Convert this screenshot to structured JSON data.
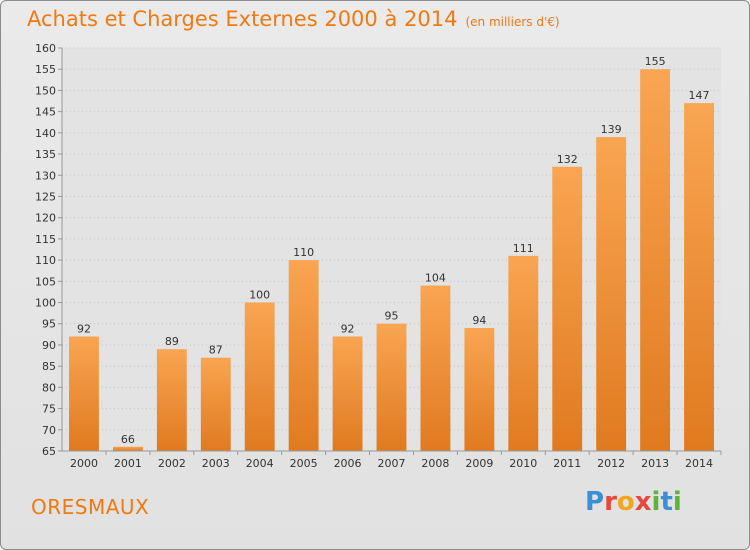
{
  "header": {
    "title": "Achats et Charges Externes 2000 à 2014",
    "unit": "(en milliers d'€)"
  },
  "footer": {
    "commune": "ORESMAUX",
    "logo_text": "Proxiti"
  },
  "colors": {
    "bar_top": "#f9a552",
    "bar_bottom": "#e07a1f",
    "accent": "#f07a10"
  },
  "chart_data": {
    "type": "bar",
    "title": "Achats et Charges Externes 2000 à 2014",
    "subtitle": "(en milliers d'€)",
    "xlabel": "",
    "ylabel": "",
    "categories": [
      "2000",
      "2001",
      "2002",
      "2003",
      "2004",
      "2005",
      "2006",
      "2007",
      "2008",
      "2009",
      "2010",
      "2011",
      "2012",
      "2013",
      "2014"
    ],
    "values": [
      92,
      66,
      89,
      87,
      100,
      110,
      92,
      95,
      104,
      94,
      111,
      132,
      139,
      155,
      147
    ],
    "ylim": [
      65,
      160
    ],
    "ytick_step": 5,
    "grid": true,
    "data_labels": true
  }
}
